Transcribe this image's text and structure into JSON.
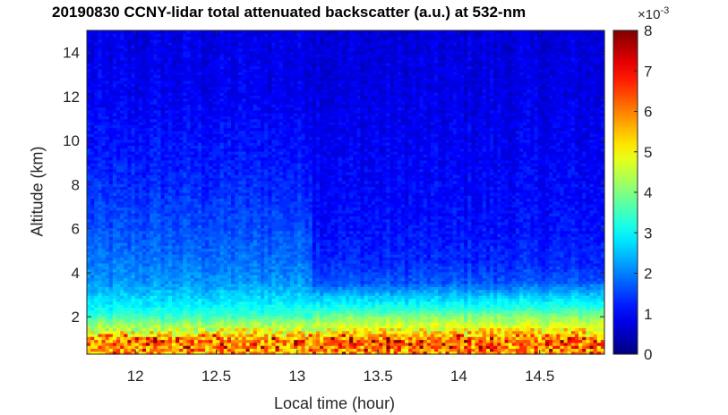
{
  "chart_data": {
    "type": "heatmap",
    "title": "20190830 CCNY-lidar total attenuated backscatter (a.u.) at 532-nm",
    "xlabel": "Local time (hour)",
    "ylabel": "Altitude (km)",
    "xlim": [
      11.7,
      14.9
    ],
    "ylim": [
      0.3,
      15
    ],
    "xticks": [
      12,
      12.5,
      13,
      13.5,
      14,
      14.5
    ],
    "xtick_labels": [
      "12",
      "12.5",
      "13",
      "13.5",
      "14",
      "14.5"
    ],
    "yticks": [
      2,
      4,
      6,
      8,
      10,
      12,
      14
    ],
    "ytick_labels": [
      "2",
      "4",
      "6",
      "8",
      "10",
      "12",
      "14"
    ],
    "colormap": "jet",
    "colorbar": {
      "min": 0,
      "max": 8,
      "ticks": [
        0,
        1,
        2,
        3,
        4,
        5,
        6,
        7,
        8
      ],
      "tick_labels": [
        "0",
        "1",
        "2",
        "3",
        "4",
        "5",
        "6",
        "7",
        "8"
      ],
      "multiplier_base": "×10",
      "multiplier_exponent": "-3"
    },
    "profile": {
      "description_levels_altitude_km": [
        0.3,
        0.8,
        1.2,
        1.6,
        2.0,
        2.4,
        2.9,
        3.5,
        4.5,
        6,
        8,
        10,
        12,
        15
      ],
      "values_before_1310": [
        5.6,
        6.0,
        5.0,
        4.2,
        3.4,
        3.0,
        2.6,
        2.2,
        1.9,
        1.6,
        1.3,
        1.1,
        0.9,
        0.8
      ],
      "values_after_1310": [
        5.6,
        6.2,
        5.4,
        4.6,
        4.0,
        3.2,
        2.6,
        1.7,
        1.3,
        1.1,
        1.0,
        0.9,
        0.8,
        0.7
      ]
    }
  }
}
